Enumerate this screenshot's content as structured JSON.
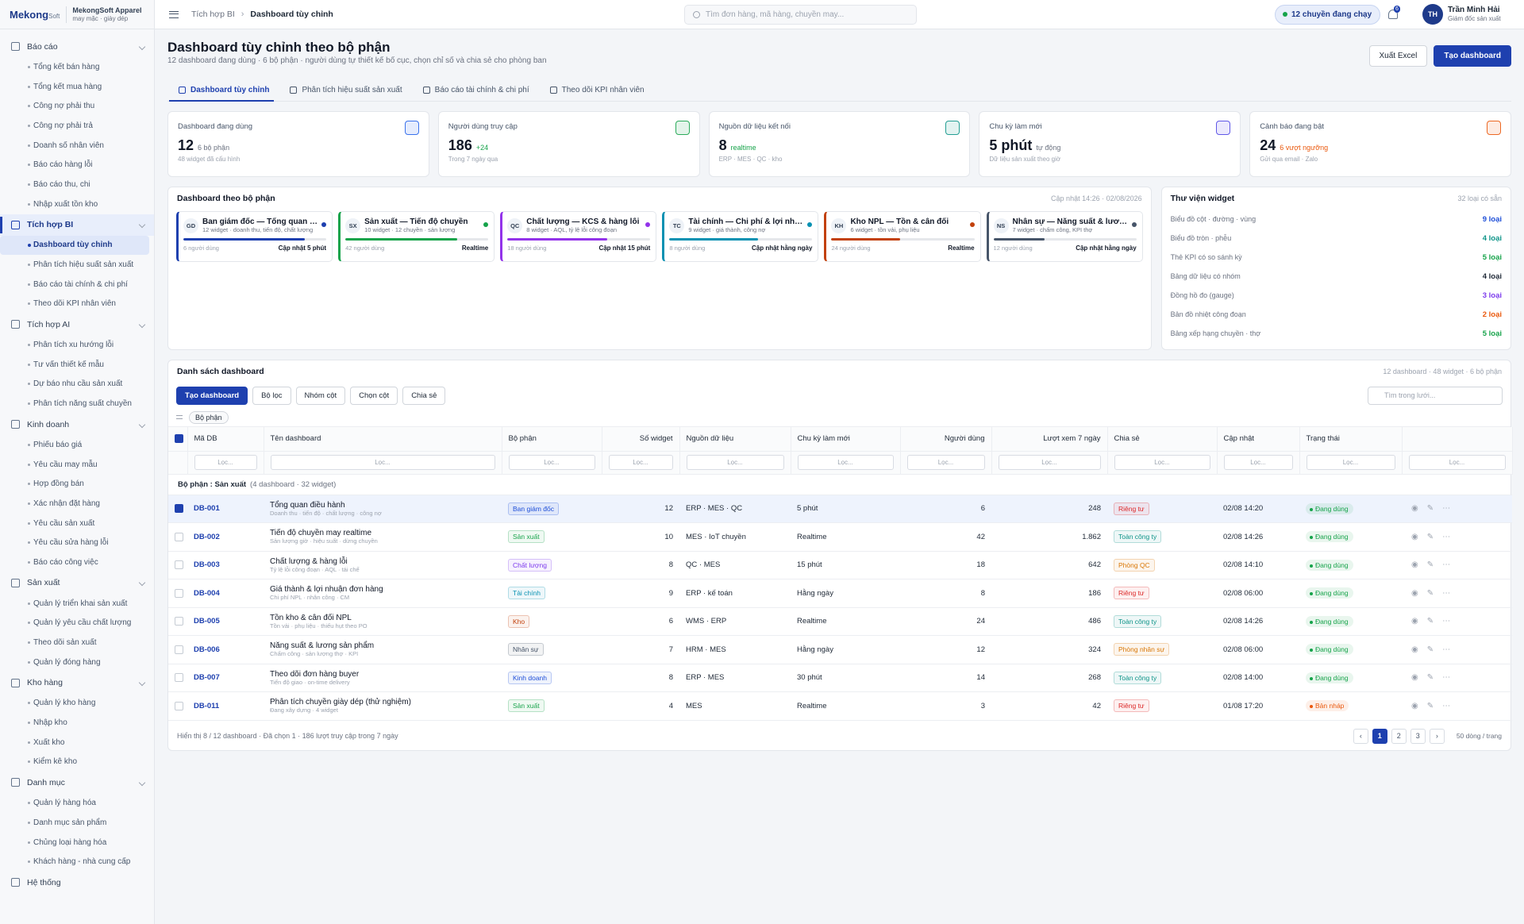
{
  "brand": {
    "name": "Mekong",
    "name_small": "Soft",
    "company": "MekongSoft Apparel",
    "company_sub": "may mặc · giày dép"
  },
  "sidebar": {
    "active": {
      "group": 1,
      "item": 0
    },
    "groups": [
      {
        "label": "Báo cáo",
        "items": [
          "Tổng kết bán hàng",
          "Tổng kết mua hàng",
          "Công nợ phải thu",
          "Công nợ phải trả",
          "Doanh số nhân viên",
          "Báo cáo hàng lỗi",
          "Báo cáo thu, chi",
          "Nhập xuất tồn kho"
        ]
      },
      {
        "label": "Tích hợp BI",
        "items": [
          "Dashboard tùy chỉnh",
          "Phân tích hiệu suất sản xuất",
          "Báo cáo tài chính & chi phí",
          "Theo dõi KPI nhân viên"
        ]
      },
      {
        "label": "Tích hợp AI",
        "items": [
          "Phân tích xu hướng lỗi",
          "Tư vấn thiết kế mẫu",
          "Dự báo nhu cầu sản xuất",
          "Phân tích năng suất chuyền"
        ]
      },
      {
        "label": "Kinh doanh",
        "items": [
          "Phiếu báo giá",
          "Yêu cầu may mẫu",
          "Hợp đồng bán",
          "Xác nhận đặt hàng",
          "Yêu cầu sản xuất",
          "Yêu cầu sửa hàng lỗi",
          "Báo cáo công việc"
        ]
      },
      {
        "label": "Sản xuất",
        "items": [
          "Quản lý triển khai sản xuất",
          "Quản lý yêu cầu chất lượng",
          "Theo dõi sản xuất",
          "Quản lý đóng hàng"
        ]
      },
      {
        "label": "Kho hàng",
        "items": [
          "Quản lý kho hàng",
          "Nhập kho",
          "Xuất kho",
          "Kiểm kê kho"
        ]
      },
      {
        "label": "Danh mục",
        "items": [
          "Quản lý hàng hóa",
          "Danh mục sản phẩm",
          "Chủng loại hàng hóa",
          "Khách hàng - nhà cung cấp"
        ]
      },
      {
        "label": "Hệ thống",
        "items": []
      }
    ]
  },
  "topbar": {
    "breadcrumb": [
      "Tích hợp BI",
      "Dashboard tùy chỉnh"
    ],
    "search": "Tìm đơn hàng, mã hàng, chuyền may...",
    "status": "12 chuyền đang chạy",
    "notifications": "6",
    "user_initials": "TH",
    "user_name": "Trần Minh Hải",
    "user_role": "Giám đốc sản xuất"
  },
  "header": {
    "title": "Dashboard tùy chỉnh theo bộ phận",
    "subtitle": "12 dashboard đang dùng · 6 bộ phận · người dùng tự thiết kế bố cục, chọn chỉ số và chia sẻ cho phòng ban",
    "export": "Xuất Excel",
    "create": "Tạo dashboard"
  },
  "tabs": {
    "active": 0,
    "items": [
      "Dashboard tùy chỉnh",
      "Phân tích hiệu suất sản xuất",
      "Báo cáo tài chính & chi phí",
      "Theo dõi KPI nhân viên"
    ]
  },
  "kpis": [
    {
      "label": "Dashboard đang dùng",
      "value": "12",
      "unit": "6 bộ phận",
      "note": "48 widget đã cấu hình",
      "color": "#2563eb",
      "unit_color": "#6b7280"
    },
    {
      "label": "Người dùng truy cập",
      "value": "186",
      "unit": "+24",
      "note": "Trong 7 ngày qua",
      "color": "#16a34a",
      "unit_color": "#16a34a"
    },
    {
      "label": "Nguồn dữ liệu kết nối",
      "value": "8",
      "unit": "realtime",
      "note": "ERP · MES · QC · kho",
      "color": "#0d9488",
      "unit_color": "#16a34a"
    },
    {
      "label": "Chu kỳ làm mới",
      "value": "5 phút",
      "unit": "tự động",
      "note": "Dữ liệu sản xuất theo giờ",
      "color": "#4f46e5",
      "unit_color": "#6b7280"
    },
    {
      "label": "Cảnh báo đang bật",
      "value": "24",
      "unit": "6 vượt ngưỡng",
      "note": "Gửi qua email · Zalo",
      "color": "#ea580c",
      "unit_color": "#ea580c"
    }
  ],
  "departments": {
    "title": "Dashboard theo bộ phận",
    "meta": "Cập nhật 14:26 · 02/08/2026",
    "cards": [
      {
        "code": "GD",
        "name": "Ban giám đốc — Tổng quan điều hành",
        "sub": "12 widget · doanh thu, tiến độ, chất lượng",
        "users": "6 người dùng",
        "refresh": "Cập nhật 5 phút",
        "color": "#1e40af",
        "progress": 85
      },
      {
        "code": "SX",
        "name": "Sản xuất — Tiến độ chuyền",
        "sub": "10 widget · 12 chuyền · sản lượng",
        "users": "42 người dùng",
        "refresh": "Realtime",
        "color": "#16a34a",
        "progress": 78
      },
      {
        "code": "QC",
        "name": "Chất lượng — KCS & hàng lỗi",
        "sub": "8 widget · AQL, tỷ lệ lỗi công đoạn",
        "users": "18 người dùng",
        "refresh": "Cập nhật 15 phút",
        "color": "#9333ea",
        "progress": 70
      },
      {
        "code": "TC",
        "name": "Tài chính — Chi phí & lợi nhuận",
        "sub": "9 widget · giá thành, công nợ",
        "users": "8 người dùng",
        "refresh": "Cập nhật hằng ngày",
        "color": "#0891b2",
        "progress": 62
      },
      {
        "code": "KH",
        "name": "Kho NPL — Tồn & cân đối",
        "sub": "6 widget · tồn vải, phụ liệu",
        "users": "24 người dùng",
        "refresh": "Realtime",
        "color": "#c2410c",
        "progress": 48
      },
      {
        "code": "NS",
        "name": "Nhân sự — Năng suất & lương",
        "sub": "7 widget · chấm công, KPI thợ",
        "users": "12 người dùng",
        "refresh": "Cập nhật hằng ngày",
        "color": "#475569",
        "progress": 36
      }
    ]
  },
  "library": {
    "title": "Thư viện widget",
    "meta": "32 loại có sẵn",
    "items": [
      {
        "name": "Biểu đồ cột · đường · vùng",
        "count": "9 loại",
        "color": "#1d4ed8"
      },
      {
        "name": "Biểu đồ tròn · phễu",
        "count": "4 loại",
        "color": "#0d9488"
      },
      {
        "name": "Thẻ KPI có so sánh kỳ",
        "count": "5 loại",
        "color": "#16a34a"
      },
      {
        "name": "Bảng dữ liệu có nhóm",
        "count": "4 loại",
        "color": "#1f2937"
      },
      {
        "name": "Đồng hồ đo (gauge)",
        "count": "3 loại",
        "color": "#7c3aed"
      },
      {
        "name": "Bản đồ nhiệt công đoạn",
        "count": "2 loại",
        "color": "#ea580c"
      },
      {
        "name": "Bảng xếp hạng chuyền · thợ",
        "count": "5 loại",
        "color": "#16a34a"
      }
    ]
  },
  "list": {
    "title": "Danh sách dashboard",
    "meta": "12 dashboard · 48 widget · 6 bộ phận",
    "toolbar": [
      "Tạo dashboard",
      "Bộ lọc",
      "Nhóm cột",
      "Chọn cột",
      "Chia sẻ"
    ],
    "search": "Tìm trong lưới...",
    "group_chip": "Bộ phận",
    "columns": [
      "Mã DB",
      "Tên dashboard",
      "Bộ phận",
      "Số widget",
      "Nguồn dữ liệu",
      "Chu kỳ làm mới",
      "Người dùng",
      "Lượt xem 7 ngày",
      "Chia sẻ",
      "Cập nhật",
      "Trạng thái"
    ],
    "filter_placeholder": "Lọc...",
    "group_row": {
      "label": "Bộ phận : Sản xuất",
      "meta": "(4 dashboard · 32 widget)"
    },
    "rows": [
      {
        "id": "DB-001",
        "name": "Tổng quan điều hành",
        "desc": "Doanh thu · tiến độ · chất lượng · công nợ",
        "dept": "Ban giám đốc",
        "dept_color": "#1d4ed8",
        "widgets": "12",
        "source": "ERP · MES · QC",
        "cycle": "5 phút",
        "users": "6",
        "views": "248",
        "share": "Riêng tư",
        "share_color": "#dc2626",
        "updated": "02/08 14:20",
        "status": "Đang dùng",
        "status_color": "#16a34a",
        "selected": true
      },
      {
        "id": "DB-002",
        "name": "Tiến độ chuyền may realtime",
        "desc": "Sản lượng giờ · hiệu suất · dừng chuyền",
        "dept": "Sản xuất",
        "dept_color": "#16a34a",
        "widgets": "10",
        "source": "MES · IoT chuyền",
        "cycle": "Realtime",
        "users": "42",
        "views": "1.862",
        "share": "Toàn công ty",
        "share_color": "#0d9488",
        "updated": "02/08 14:26",
        "status": "Đang dùng",
        "status_color": "#16a34a",
        "selected": false
      },
      {
        "id": "DB-003",
        "name": "Chất lượng & hàng lỗi",
        "desc": "Tỷ lệ lỗi công đoạn · AQL · tái chế",
        "dept": "Chất lượng",
        "dept_color": "#7c3aed",
        "widgets": "8",
        "source": "QC · MES",
        "cycle": "15 phút",
        "users": "18",
        "views": "642",
        "share": "Phòng QC",
        "share_color": "#d97706",
        "updated": "02/08 14:10",
        "status": "Đang dùng",
        "status_color": "#16a34a",
        "selected": false
      },
      {
        "id": "DB-004",
        "name": "Giá thành & lợi nhuận đơn hàng",
        "desc": "Chi phí NPL · nhân công · CM",
        "dept": "Tài chính",
        "dept_color": "#0891b2",
        "widgets": "9",
        "source": "ERP · kế toán",
        "cycle": "Hằng ngày",
        "users": "8",
        "views": "186",
        "share": "Riêng tư",
        "share_color": "#dc2626",
        "updated": "02/08 06:00",
        "status": "Đang dùng",
        "status_color": "#16a34a",
        "selected": false
      },
      {
        "id": "DB-005",
        "name": "Tồn kho & cân đối NPL",
        "desc": "Tồn vải · phụ liệu · thiếu hụt theo PO",
        "dept": "Kho",
        "dept_color": "#c2410c",
        "widgets": "6",
        "source": "WMS · ERP",
        "cycle": "Realtime",
        "users": "24",
        "views": "486",
        "share": "Toàn công ty",
        "share_color": "#0d9488",
        "updated": "02/08 14:26",
        "status": "Đang dùng",
        "status_color": "#16a34a",
        "selected": false
      },
      {
        "id": "DB-006",
        "name": "Năng suất & lương sản phẩm",
        "desc": "Chấm công · sản lượng thợ · KPI",
        "dept": "Nhân sự",
        "dept_color": "#475569",
        "widgets": "7",
        "source": "HRM · MES",
        "cycle": "Hằng ngày",
        "users": "12",
        "views": "324",
        "share": "Phòng nhân sự",
        "share_color": "#d97706",
        "updated": "02/08 06:00",
        "status": "Đang dùng",
        "status_color": "#16a34a",
        "selected": false
      },
      {
        "id": "DB-007",
        "name": "Theo dõi đơn hàng buyer",
        "desc": "Tiến độ giao · on-time delivery",
        "dept": "Kinh doanh",
        "dept_color": "#1d4ed8",
        "widgets": "8",
        "source": "ERP · MES",
        "cycle": "30 phút",
        "users": "14",
        "views": "268",
        "share": "Toàn công ty",
        "share_color": "#0d9488",
        "updated": "02/08 14:00",
        "status": "Đang dùng",
        "status_color": "#16a34a",
        "selected": false
      },
      {
        "id": "DB-011",
        "name": "Phân tích chuyền giày dép (thử nghiệm)",
        "desc": "Đang xây dựng · 4 widget",
        "dept": "Sản xuất",
        "dept_color": "#16a34a",
        "widgets": "4",
        "source": "MES",
        "cycle": "Realtime",
        "users": "3",
        "views": "42",
        "share": "Riêng tư",
        "share_color": "#dc2626",
        "updated": "01/08 17:20",
        "status": "Bản nháp",
        "status_color": "#ea580c",
        "selected": false
      }
    ],
    "footer": "Hiển thị 8 / 12 dashboard · Đã chọn 1 · 186 lượt truy cập trong 7 ngày",
    "pager": {
      "prev": "‹",
      "pages": [
        "1",
        "2",
        "3"
      ],
      "next": "›",
      "active": 0,
      "per_page": "50 dòng / trang"
    }
  }
}
